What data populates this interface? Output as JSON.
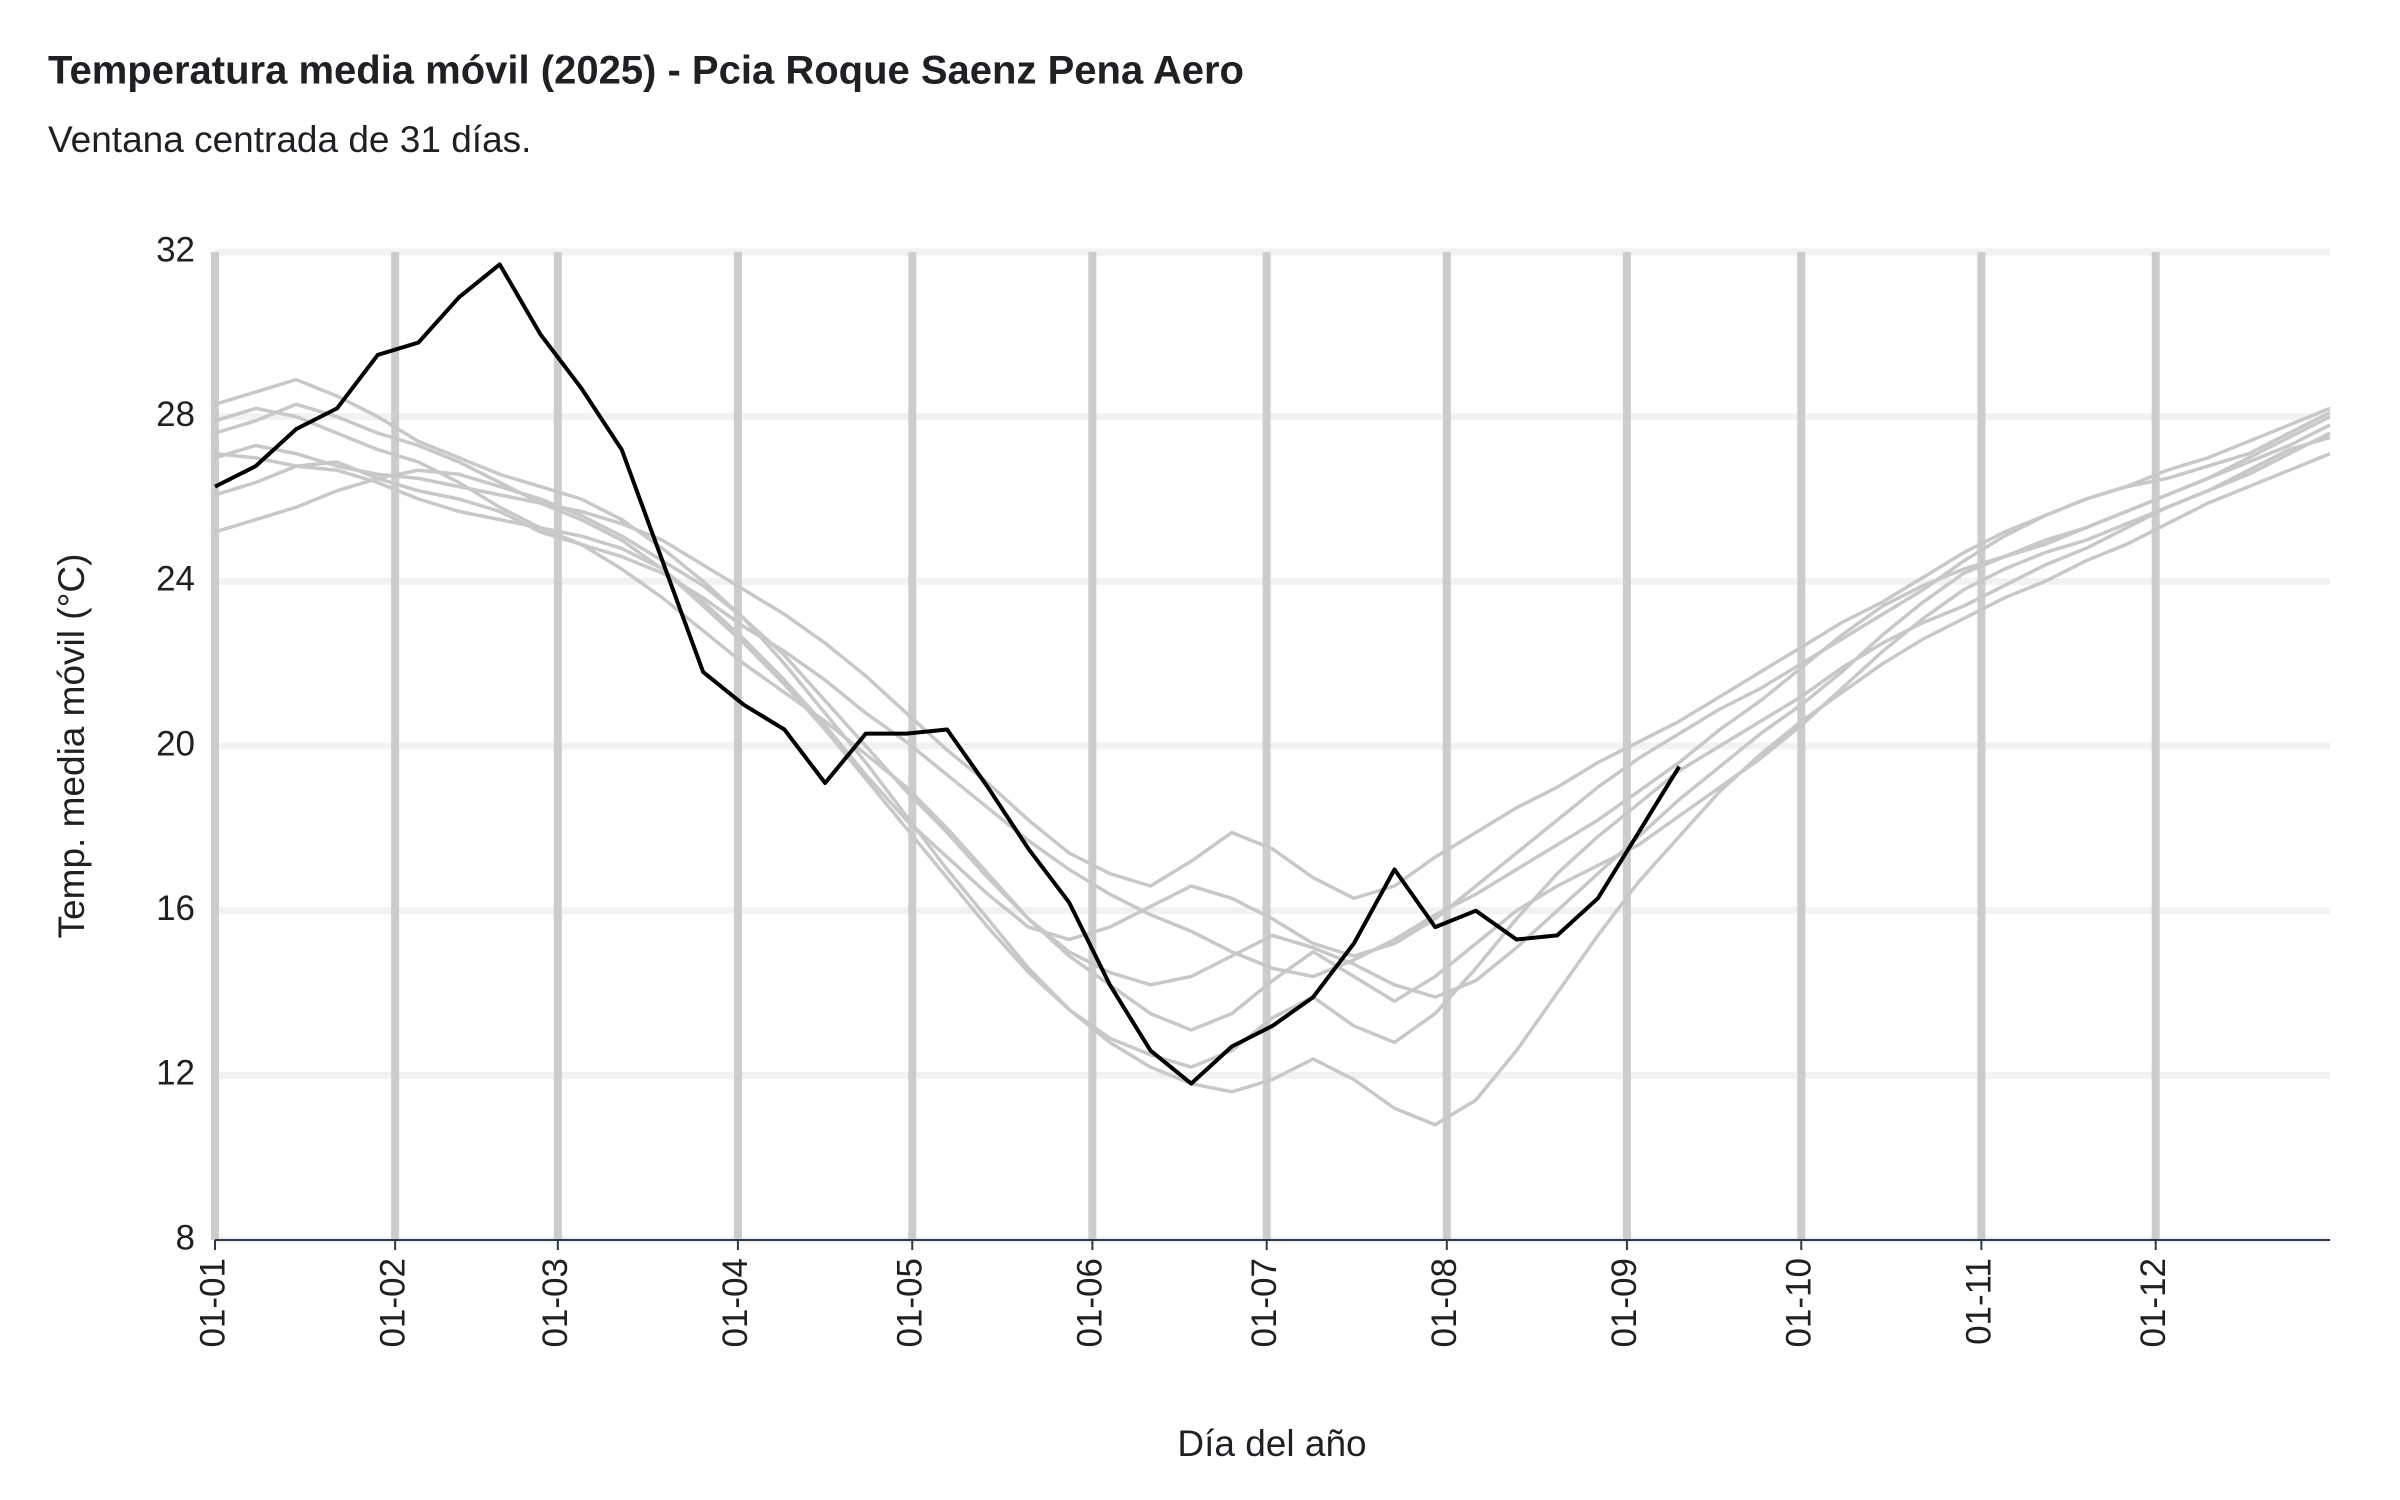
{
  "chart_data": {
    "type": "line",
    "title": "Temperatura media móvil (2025) - Pcia Roque Saenz Pena Aero",
    "subtitle": "Ventana centrada de 31 días.",
    "x_label": "Día del año",
    "y_label": "Temp. media móvil (°C)",
    "x": [
      1,
      8,
      15,
      22,
      29,
      36,
      43,
      50,
      57,
      64,
      71,
      78,
      85,
      92,
      99,
      106,
      113,
      120,
      127,
      134,
      141,
      148,
      155,
      162,
      169,
      176,
      183,
      190,
      197,
      204,
      211,
      218,
      225,
      232,
      239,
      246,
      253,
      260,
      267,
      274,
      281,
      288,
      295,
      302,
      309,
      316,
      323,
      330,
      337,
      344,
      351,
      358,
      365
    ],
    "xlim": [
      1,
      365
    ],
    "xticks": [
      {
        "value": 1,
        "label": "01-01"
      },
      {
        "value": 32,
        "label": "01-02"
      },
      {
        "value": 60,
        "label": "01-03"
      },
      {
        "value": 91,
        "label": "01-04"
      },
      {
        "value": 121,
        "label": "01-05"
      },
      {
        "value": 152,
        "label": "01-06"
      },
      {
        "value": 182,
        "label": "01-07"
      },
      {
        "value": 213,
        "label": "01-08"
      },
      {
        "value": 244,
        "label": "01-09"
      },
      {
        "value": 274,
        "label": "01-10"
      },
      {
        "value": 305,
        "label": "01-11"
      },
      {
        "value": 335,
        "label": "01-12"
      }
    ],
    "ylim": [
      8,
      32
    ],
    "yticks": [
      8,
      12,
      16,
      20,
      24,
      28,
      32
    ],
    "grid": true,
    "series": [
      {
        "color": "#c8c8c8",
        "values": [
          28.3,
          28.6,
          28.9,
          28.5,
          28.0,
          27.4,
          27.0,
          26.6,
          26.3,
          26.0,
          25.5,
          24.8,
          24.0,
          23.1,
          22.0,
          20.8,
          19.6,
          18.3,
          17.0,
          15.8,
          14.6,
          13.6,
          12.9,
          12.5,
          12.2,
          12.6,
          13.4,
          13.9,
          13.2,
          12.8,
          13.5,
          14.6,
          15.8,
          16.9,
          17.8,
          18.6,
          19.4,
          20.0,
          20.6,
          21.2,
          21.9,
          22.5,
          23.0,
          23.4,
          23.9,
          24.4,
          24.8,
          25.3,
          25.8,
          26.2,
          26.6,
          27.1,
          27.6
        ]
      },
      {
        "color": "#c8c8c8",
        "values": [
          26.1,
          26.4,
          26.8,
          26.9,
          26.5,
          26.2,
          26.0,
          25.7,
          25.2,
          24.9,
          24.6,
          24.2,
          23.6,
          22.9,
          22.3,
          21.6,
          20.8,
          20.1,
          19.3,
          18.5,
          17.7,
          17.0,
          16.4,
          15.9,
          15.5,
          15.0,
          14.6,
          14.4,
          14.8,
          15.3,
          15.9,
          16.4,
          17.0,
          17.6,
          18.2,
          18.9,
          19.6,
          20.4,
          21.1,
          21.9,
          22.7,
          23.4,
          23.9,
          24.3,
          24.6,
          25.0,
          25.3,
          25.7,
          26.1,
          26.5,
          27.0,
          27.5,
          28.0
        ]
      },
      {
        "color": "#c8c8c8",
        "values": [
          27.6,
          27.9,
          28.3,
          28.0,
          27.6,
          27.3,
          26.9,
          26.4,
          25.9,
          25.5,
          25.0,
          24.3,
          23.4,
          22.5,
          21.5,
          20.4,
          19.2,
          18.0,
          16.8,
          15.6,
          14.5,
          13.6,
          12.8,
          12.2,
          11.8,
          11.6,
          11.9,
          12.4,
          11.9,
          11.2,
          10.8,
          11.4,
          12.6,
          14.0,
          15.4,
          16.7,
          17.8,
          18.9,
          19.8,
          20.6,
          21.3,
          22.0,
          22.6,
          23.1,
          23.6,
          24.0,
          24.5,
          24.9,
          25.4,
          25.9,
          26.3,
          26.7,
          27.1
        ]
      },
      {
        "color": "#c8c8c8",
        "values": [
          27.0,
          27.3,
          27.1,
          26.8,
          26.6,
          26.5,
          26.3,
          26.1,
          25.9,
          25.7,
          25.4,
          25.0,
          24.4,
          23.8,
          23.2,
          22.5,
          21.7,
          20.8,
          19.9,
          19.1,
          18.2,
          17.4,
          16.9,
          16.6,
          17.2,
          17.9,
          17.5,
          16.8,
          16.3,
          16.6,
          17.3,
          17.9,
          18.5,
          19.0,
          19.6,
          20.1,
          20.6,
          21.2,
          21.8,
          22.4,
          23.0,
          23.5,
          24.1,
          24.7,
          25.2,
          25.6,
          26.0,
          26.3,
          26.7,
          27.0,
          27.4,
          27.8,
          28.2
        ]
      },
      {
        "color": "#c8c8c8",
        "values": [
          27.9,
          28.2,
          28.0,
          27.6,
          27.2,
          26.9,
          26.4,
          25.8,
          25.3,
          24.9,
          24.3,
          23.6,
          22.8,
          22.0,
          21.3,
          20.6,
          19.8,
          19.0,
          18.0,
          16.9,
          15.8,
          14.9,
          14.2,
          13.5,
          13.1,
          13.5,
          14.3,
          15.0,
          14.4,
          13.8,
          14.4,
          15.2,
          16.0,
          16.6,
          17.1,
          17.6,
          18.3,
          19.0,
          19.7,
          20.5,
          21.4,
          22.3,
          23.1,
          23.8,
          24.3,
          24.7,
          25.0,
          25.4,
          25.8,
          26.2,
          26.7,
          27.2,
          27.5
        ]
      },
      {
        "color": "#c8c8c8",
        "values": [
          25.2,
          25.5,
          25.8,
          26.2,
          26.5,
          26.7,
          26.6,
          26.3,
          26.0,
          25.6,
          25.1,
          24.5,
          23.9,
          23.1,
          22.2,
          21.1,
          20.0,
          18.9,
          17.9,
          16.8,
          15.8,
          15.0,
          14.5,
          14.2,
          14.4,
          14.9,
          15.4,
          15.1,
          14.7,
          14.2,
          13.9,
          14.3,
          15.1,
          16.0,
          16.9,
          17.8,
          18.7,
          19.5,
          20.3,
          21.0,
          21.8,
          22.7,
          23.5,
          24.2,
          24.6,
          24.9,
          25.3,
          25.7,
          26.1,
          26.5,
          26.9,
          27.3,
          27.8
        ]
      },
      {
        "color": "#c8c8c8",
        "values": [
          27.1,
          27.0,
          26.8,
          26.7,
          26.4,
          26.0,
          25.7,
          25.5,
          25.3,
          25.1,
          24.8,
          24.3,
          23.5,
          22.6,
          21.6,
          20.5,
          19.3,
          18.2,
          17.3,
          16.4,
          15.6,
          15.3,
          15.6,
          16.1,
          16.6,
          16.3,
          15.8,
          15.2,
          14.9,
          15.2,
          15.8,
          16.6,
          17.4,
          18.2,
          19.0,
          19.7,
          20.3,
          20.9,
          21.4,
          22.0,
          22.6,
          23.2,
          23.8,
          24.5,
          25.1,
          25.6,
          26.0,
          26.3,
          26.5,
          26.8,
          27.1,
          27.6,
          28.1
        ]
      },
      {
        "color": "#000000",
        "values": [
          26.3,
          26.8,
          27.7,
          28.2,
          29.5,
          29.8,
          30.9,
          31.7,
          30.0,
          28.7,
          27.2,
          24.5,
          21.8,
          21.0,
          20.4,
          19.1,
          20.3,
          20.3,
          20.4,
          19.0,
          17.5,
          16.2,
          14.2,
          12.6,
          11.8,
          12.7,
          13.2,
          13.9,
          15.2,
          17.0,
          15.6,
          16.0,
          15.3,
          15.4,
          16.3,
          17.9,
          19.5,
          null,
          null,
          null,
          null,
          null,
          null,
          null,
          null,
          null,
          null,
          null,
          null,
          null,
          null,
          null,
          null
        ]
      }
    ]
  }
}
